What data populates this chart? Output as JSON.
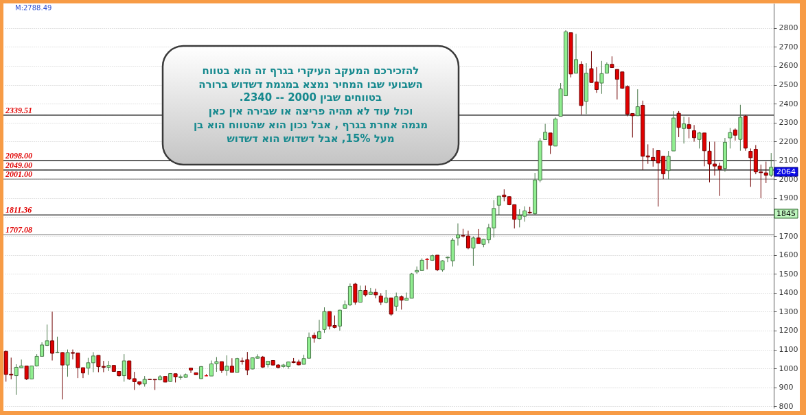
{
  "chart_data": {
    "type": "candlestick",
    "categories": [
      null,
      null,
      null,
      null,
      null,
      null,
      null,
      null,
      null,
      null,
      null,
      null,
      null,
      null,
      null,
      null,
      null,
      null,
      null,
      null,
      null,
      null,
      null,
      null,
      null,
      null,
      null,
      null,
      null,
      null,
      null,
      null,
      null,
      null,
      null,
      null,
      null,
      null,
      null,
      null,
      null,
      null,
      null,
      null,
      null,
      null,
      null,
      null,
      null,
      null,
      null,
      null,
      null,
      null,
      null,
      null,
      null,
      null,
      null,
      null,
      null,
      null,
      null,
      null,
      null,
      null,
      null,
      null,
      null,
      null,
      null,
      null,
      null,
      null,
      null,
      null,
      null,
      null,
      null,
      null,
      null,
      null,
      null,
      null,
      null,
      null,
      null,
      null,
      null,
      null,
      null,
      null,
      null,
      null,
      null,
      null,
      null,
      null,
      null,
      null,
      null,
      null,
      null,
      null,
      null,
      null,
      null,
      null,
      null,
      null,
      null,
      null,
      null,
      null,
      null,
      null,
      null,
      null,
      null,
      null,
      null,
      null,
      null,
      null,
      null,
      null,
      null,
      null,
      null,
      null,
      null,
      null,
      null,
      null,
      null,
      null,
      null,
      null,
      null,
      null,
      null,
      null,
      null,
      null,
      null,
      null,
      null,
      null,
      null,
      null
    ],
    "ohlc": [
      [
        1090,
        1095,
        930,
        968
      ],
      [
        970,
        1057,
        942,
        965
      ],
      [
        962,
        1022,
        860,
        1006
      ],
      [
        1004,
        1047,
        1004,
        1013
      ],
      [
        1013,
        1013,
        939,
        944
      ],
      [
        944,
        1015,
        942,
        1013
      ],
      [
        1013,
        1076,
        1010,
        1064
      ],
      [
        1064,
        1138,
        1062,
        1124
      ],
      [
        1122,
        1232,
        1118,
        1146
      ],
      [
        1146,
        1300,
        1042,
        1080
      ],
      [
        1084,
        1168,
        1082,
        1086
      ],
      [
        1084,
        1086,
        836,
        1018
      ],
      [
        1018,
        1100,
        956,
        1084
      ],
      [
        1084,
        1100,
        1048,
        1080
      ],
      [
        1081,
        1081,
        949,
        1004
      ],
      [
        1004,
        1004,
        949,
        976
      ],
      [
        1002,
        1056,
        966,
        1030
      ],
      [
        1030,
        1086,
        980,
        1066
      ],
      [
        1069,
        1069,
        980,
        1009
      ],
      [
        1011,
        1040,
        980,
        1006
      ],
      [
        1006,
        1040,
        986,
        1016
      ],
      [
        1016,
        1016,
        982,
        984
      ],
      [
        984,
        984,
        956,
        962
      ],
      [
        962,
        1076,
        930,
        1040
      ],
      [
        1040,
        1040,
        939,
        944
      ],
      [
        946,
        982,
        886,
        930
      ],
      [
        929,
        929,
        910,
        917
      ],
      [
        918,
        960,
        904,
        942
      ],
      [
        942,
        943,
        941,
        941
      ],
      [
        942,
        943,
        886,
        940
      ],
      [
        940,
        964,
        938,
        956
      ],
      [
        958,
        958,
        927,
        928
      ],
      [
        931,
        975,
        929,
        973
      ],
      [
        972,
        972,
        926,
        955
      ],
      [
        952,
        967,
        940,
        956
      ],
      [
        953,
        973,
        952,
        967
      ],
      [
        1002,
        1004,
        976,
        991
      ],
      [
        977,
        978,
        966,
        967
      ],
      [
        946,
        1012,
        944,
        1010
      ],
      [
        961,
        970,
        960,
        961
      ],
      [
        960,
        1042,
        960,
        1024
      ],
      [
        1025,
        1060,
        982,
        1036
      ],
      [
        1036,
        1036,
        976,
        989
      ],
      [
        989,
        1069,
        962,
        1012
      ],
      [
        1012,
        1054,
        979,
        979
      ],
      [
        979,
        1056,
        979,
        1052
      ],
      [
        1040,
        1057,
        1020,
        1036
      ],
      [
        1046,
        1087,
        964,
        991
      ],
      [
        997,
        1058,
        995,
        1056
      ],
      [
        1054,
        1075,
        1052,
        1062
      ],
      [
        1060,
        1066,
        1003,
        1007
      ],
      [
        1020,
        1040,
        1005,
        1038
      ],
      [
        1042,
        1044,
        1015,
        1018
      ],
      [
        1018,
        1022,
        1000,
        1005
      ],
      [
        1010,
        1024,
        1004,
        1018
      ],
      [
        1010,
        1036,
        998,
        1034
      ],
      [
        1036,
        1055,
        1028,
        1031
      ],
      [
        1034,
        1046,
        1016,
        1019
      ],
      [
        1022,
        1072,
        1022,
        1052
      ],
      [
        1054,
        1190,
        1054,
        1164
      ],
      [
        1175,
        1190,
        1136,
        1160
      ],
      [
        1158,
        1257,
        1154,
        1194
      ],
      [
        1206,
        1323,
        1188,
        1301
      ],
      [
        1301,
        1301,
        1206,
        1224
      ],
      [
        1227,
        1280,
        1212,
        1217
      ],
      [
        1224,
        1310,
        1200,
        1308
      ],
      [
        1318,
        1359,
        1318,
        1337
      ],
      [
        1336,
        1449,
        1330,
        1434
      ],
      [
        1446,
        1452,
        1337,
        1350
      ],
      [
        1350,
        1438,
        1350,
        1412
      ],
      [
        1412,
        1438,
        1380,
        1389
      ],
      [
        1391,
        1425,
        1391,
        1403
      ],
      [
        1402,
        1422,
        1371,
        1389
      ],
      [
        1383,
        1398,
        1335,
        1350
      ],
      [
        1349,
        1414,
        1344,
        1373
      ],
      [
        1373,
        1373,
        1278,
        1287
      ],
      [
        1329,
        1401,
        1305,
        1379
      ],
      [
        1379,
        1386,
        1311,
        1361
      ],
      [
        1360,
        1401,
        1360,
        1371
      ],
      [
        1371,
        1505,
        1371,
        1500
      ],
      [
        1510,
        1539,
        1500,
        1518
      ],
      [
        1518,
        1582,
        1518,
        1572
      ],
      [
        1576,
        1584,
        1524,
        1576
      ],
      [
        1572,
        1602,
        1569,
        1596
      ],
      [
        1599,
        1599,
        1515,
        1521
      ],
      [
        1521,
        1572,
        1512,
        1569
      ],
      [
        1585,
        1592,
        1562,
        1588
      ],
      [
        1569,
        1689,
        1539,
        1678
      ],
      [
        1690,
        1767,
        1650,
        1706
      ],
      [
        1703,
        1738,
        1692,
        1700
      ],
      [
        1700,
        1728,
        1630,
        1637
      ],
      [
        1636,
        1698,
        1542,
        1690
      ],
      [
        1690,
        1737,
        1660,
        1660
      ],
      [
        1656,
        1686,
        1641,
        1683
      ],
      [
        1680,
        1764,
        1662,
        1744
      ],
      [
        1743,
        1890,
        1692,
        1846
      ],
      [
        1863,
        1911,
        1812,
        1911
      ],
      [
        1917,
        1947,
        1884,
        1908
      ],
      [
        1908,
        1911,
        1863,
        1866
      ],
      [
        1866,
        1866,
        1740,
        1788
      ],
      [
        1788,
        1842,
        1746,
        1809
      ],
      [
        1805,
        1857,
        1776,
        1833
      ],
      [
        1826,
        1854,
        1818,
        1822
      ],
      [
        1818,
        2034,
        1812,
        1996
      ],
      [
        1996,
        2218,
        1984,
        2202
      ],
      [
        2210,
        2293,
        2210,
        2249
      ],
      [
        2245,
        2245,
        2134,
        2180
      ],
      [
        2176,
        2327,
        2176,
        2319
      ],
      [
        2333,
        2509,
        2333,
        2478
      ],
      [
        2442,
        2788.49,
        2442,
        2780
      ],
      [
        2775,
        2775,
        2539,
        2557
      ],
      [
        2561,
        2769,
        2561,
        2633
      ],
      [
        2608,
        2624,
        2343,
        2390
      ],
      [
        2412,
        2614,
        2345,
        2561
      ],
      [
        2585,
        2678,
        2512,
        2512
      ],
      [
        2515,
        2593,
        2457,
        2475
      ],
      [
        2509,
        2626,
        2452,
        2559
      ],
      [
        2561,
        2618,
        2561,
        2608
      ],
      [
        2608,
        2650,
        2591,
        2591
      ],
      [
        2581,
        2581,
        2422,
        2529
      ],
      [
        2568,
        2568,
        2479,
        2481
      ],
      [
        2491,
        2497,
        2333,
        2345
      ],
      [
        2348,
        2348,
        2221,
        2336
      ],
      [
        2336,
        2476,
        2336,
        2384
      ],
      [
        2391,
        2416,
        2050,
        2122
      ],
      [
        2124,
        2185,
        2082,
        2118
      ],
      [
        2116,
        2164,
        2067,
        2101
      ],
      [
        2152,
        2152,
        1856,
        2086
      ],
      [
        2122,
        2122,
        2001,
        2029
      ],
      [
        2046,
        2150,
        2001,
        2122
      ],
      [
        2150,
        2360,
        2150,
        2324
      ],
      [
        2349,
        2361,
        2223,
        2274
      ],
      [
        2269,
        2331,
        2189,
        2293
      ],
      [
        2289,
        2328,
        2217,
        2269
      ],
      [
        2257,
        2287,
        2199,
        2220
      ],
      [
        2211,
        2251,
        2163,
        2245
      ],
      [
        2245,
        2245,
        2069,
        2151
      ],
      [
        2149,
        2199,
        1984,
        2081
      ],
      [
        2081,
        2199,
        2020,
        2070
      ],
      [
        2070,
        2088,
        1912,
        2054
      ],
      [
        2057,
        2219,
        2040,
        2196
      ],
      [
        2219,
        2271,
        2163,
        2247
      ],
      [
        2261,
        2269,
        2205,
        2233
      ],
      [
        2211,
        2394,
        2151,
        2328
      ],
      [
        2334,
        2340,
        2151,
        2165
      ],
      [
        2148,
        2163,
        1960,
        2114
      ],
      [
        2159,
        2181,
        2027,
        2039
      ],
      [
        2039,
        2078,
        1900,
        2035
      ],
      [
        2034,
        2094,
        1980,
        2022
      ],
      [
        2022,
        2139,
        2012,
        2064
      ]
    ],
    "colors": [
      "#e00000",
      "#e00000",
      "#90ee90",
      "#90ee90",
      "#e00000",
      "#90ee90",
      "#90ee90",
      "#90ee90",
      "#90ee90",
      "#e00000",
      "#90ee90",
      "#e00000",
      "#90ee90",
      "#e00000",
      "#e00000",
      "#e00000",
      "#90ee90",
      "#90ee90",
      "#e00000",
      "#e00000",
      "#90ee90",
      "#e00000",
      "#e00000",
      "#90ee90",
      "#e00000",
      "#e00000",
      "#e00000",
      "#90ee90",
      "#e00000",
      "#e00000",
      "#90ee90",
      "#e00000",
      "#90ee90",
      "#e00000",
      "#90ee90",
      "#90ee90",
      "#e00000",
      "#e00000",
      "#90ee90",
      "#e00000",
      "#90ee90",
      "#90ee90",
      "#e00000",
      "#90ee90",
      "#e00000",
      "#90ee90",
      "#e00000",
      "#e00000",
      "#90ee90",
      "#90ee90",
      "#e00000",
      "#90ee90",
      "#e00000",
      "#e00000",
      "#90ee90",
      "#90ee90",
      "#e00000",
      "#e00000",
      "#90ee90",
      "#90ee90",
      "#e00000",
      "#90ee90",
      "#90ee90",
      "#e00000",
      "#e00000",
      "#90ee90",
      "#90ee90",
      "#90ee90",
      "#e00000",
      "#90ee90",
      "#e00000",
      "#90ee90",
      "#e00000",
      "#e00000",
      "#90ee90",
      "#e00000",
      "#90ee90",
      "#e00000",
      "#90ee90",
      "#90ee90",
      "#90ee90",
      "#90ee90",
      "#e00000",
      "#90ee90",
      "#e00000",
      "#90ee90",
      "#90ee90",
      "#90ee90",
      "#90ee90",
      "#e00000",
      "#e00000",
      "#90ee90",
      "#e00000",
      "#90ee90",
      "#90ee90",
      "#90ee90",
      "#90ee90",
      "#e00000",
      "#e00000",
      "#e00000",
      "#90ee90",
      "#90ee90",
      "#e00000",
      "#90ee90",
      "#90ee90",
      "#90ee90",
      "#e00000",
      "#90ee90",
      "#90ee90",
      "#90ee90",
      "#e00000",
      "#90ee90",
      "#e00000",
      "#90ee90",
      "#e00000",
      "#e00000",
      "#90ee90",
      "#90ee90",
      "#e00000",
      "#e00000",
      "#e00000",
      "#e00000",
      "#e00000",
      "#90ee90",
      "#e00000",
      "#e00000",
      "#e00000",
      "#e00000",
      "#e00000",
      "#90ee90",
      "#90ee90",
      "#e00000",
      "#90ee90",
      "#e00000",
      "#e00000",
      "#90ee90",
      "#e00000",
      "#e00000",
      "#e00000",
      "#e00000",
      "#90ee90",
      "#90ee90",
      "#e00000",
      "#90ee90",
      "#e00000",
      "#e00000",
      "#e00000",
      "#e00000",
      "#e00000",
      "#90ee90"
    ],
    "ylim": [
      790,
      2930
    ],
    "yticks": [
      800,
      900,
      1000,
      1100,
      1200,
      1300,
      1400,
      1500,
      1600,
      1700,
      {
        "value": 1800,
        "label": null
      },
      1900,
      2000,
      2100,
      2200,
      2300,
      2400,
      2500,
      2600,
      2700,
      2800
    ],
    "grid": "y",
    "ref_lines": [
      {
        "axis": "y",
        "value": 2339.51,
        "label": "2339.51",
        "color": "#000000"
      },
      {
        "axis": "y",
        "value": 2098.0,
        "label": "2098.00",
        "color": "#000000"
      },
      {
        "axis": "y",
        "value": 2049.0,
        "label": "2049.00",
        "color": "#000000"
      },
      {
        "axis": "y",
        "value": 2001.0,
        "label": "2001.00",
        "color": "#8c8c8c"
      },
      {
        "axis": "y",
        "value": 1811.36,
        "label": "1811.36",
        "color": "#000000"
      },
      {
        "axis": "y",
        "value": 1707.08,
        "label": "1707.08",
        "color": "#8c8c8c"
      }
    ],
    "annotations": [
      "M:2788.49",
      "להזכירכם המעקב העיקרי בגרף זה הוא בטווח\nהשבועי שבו המחיר נמצא במגמת דשדוש ברורה\nבטווחים שבין 2000 -- 2340.\nוכול עוד לא תהיה פריצה או שבירה אין כאן\nמגמה אחרת בגרף , אבל נכון הוא שהטווח הוא בן\nמעל 15%, אבל דשדוש הוא דשדוש",
      "2064",
      "1845"
    ]
  }
}
